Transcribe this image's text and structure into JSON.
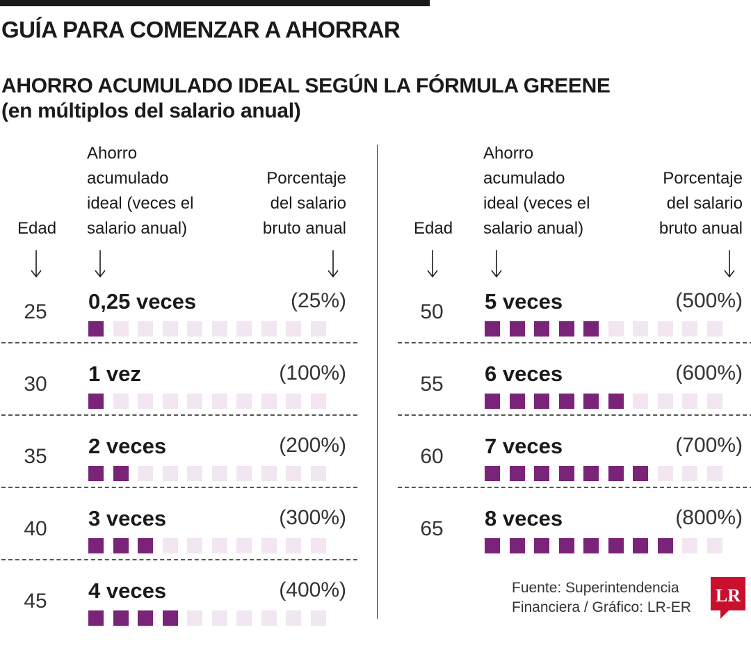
{
  "header": {
    "main_title": "GUÍA PARA COMENZAR A AHORRAR",
    "subtitle_line1": "AHORRO ACUMULADO IDEAL SEGÚN LA FÓRMULA GREENE",
    "subtitle_line2": "(en múltiplos del salario anual)"
  },
  "columns": {
    "edad": "Edad",
    "ahorro": [
      "Ahorro",
      "acumulado",
      "ideal (veces el",
      "salario anual)"
    ],
    "porcentaje": [
      "Porcentaje",
      "del salario",
      "bruto anual"
    ]
  },
  "colors": {
    "filled": "#7a2479",
    "empty": "#f1e6f2",
    "text": "#1a1a1a"
  },
  "chart_data": {
    "type": "table",
    "title": "AHORRO ACUMULADO IDEAL SEGÚN LA FÓRMULA GREENE",
    "subtitle": "(en múltiplos del salario anual)",
    "max_squares": 10,
    "rows": [
      {
        "age": "25",
        "label": "0,25 veces",
        "pct": "(25%)",
        "value": 0.25,
        "filled": 1
      },
      {
        "age": "30",
        "label": "1 vez",
        "pct": "(100%)",
        "value": 1,
        "filled": 1
      },
      {
        "age": "35",
        "label": "2 veces",
        "pct": "(200%)",
        "value": 2,
        "filled": 2
      },
      {
        "age": "40",
        "label": "3 veces",
        "pct": "(300%)",
        "value": 3,
        "filled": 3
      },
      {
        "age": "45",
        "label": "4 veces",
        "pct": "(400%)",
        "value": 4,
        "filled": 4
      },
      {
        "age": "50",
        "label": "5 veces",
        "pct": "(500%)",
        "value": 5,
        "filled": 5
      },
      {
        "age": "55",
        "label": "6 veces",
        "pct": "(600%)",
        "value": 6,
        "filled": 6
      },
      {
        "age": "60",
        "label": "7 veces",
        "pct": "(700%)",
        "value": 7,
        "filled": 7
      },
      {
        "age": "65",
        "label": "8 veces",
        "pct": "(800%)",
        "value": 8,
        "filled": 8
      }
    ]
  },
  "footer": {
    "source_line1": "Fuente: Superintendencia",
    "source_line2": "Financiera / Gráfico: LR-ER",
    "logo_text": "LR",
    "logo_color": "#c8102e"
  }
}
